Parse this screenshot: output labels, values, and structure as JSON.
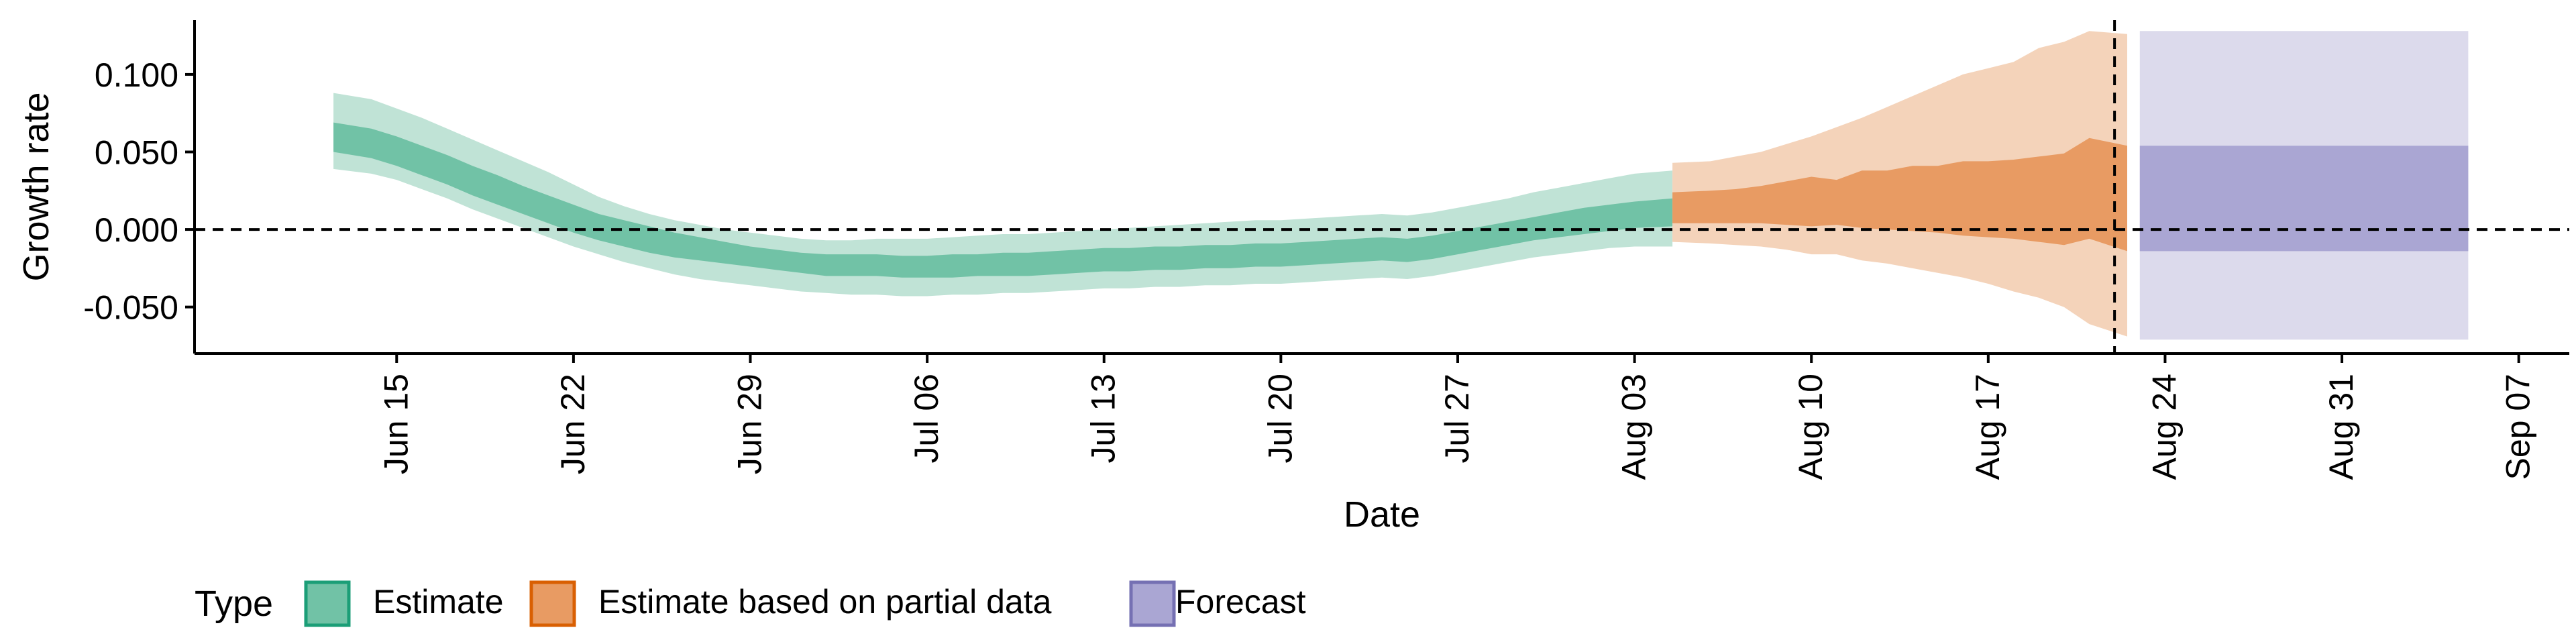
{
  "chart_data": {
    "type": "area",
    "title": "",
    "xlabel": "Date",
    "ylabel": "Growth rate",
    "x_axis": {
      "type": "date",
      "range": [
        "2020-06-07",
        "2020-09-09"
      ],
      "ticks": [
        "2020-06-15",
        "2020-06-22",
        "2020-06-29",
        "2020-07-06",
        "2020-07-13",
        "2020-07-20",
        "2020-07-27",
        "2020-08-03",
        "2020-08-10",
        "2020-08-17",
        "2020-08-24",
        "2020-08-31",
        "2020-09-07"
      ],
      "tick_labels": [
        "Jun 15",
        "Jun 22",
        "Jun 29",
        "Jul 06",
        "Jul 13",
        "Jul 20",
        "Jul 27",
        "Aug 03",
        "Aug 10",
        "Aug 17",
        "Aug 24",
        "Aug 31",
        "Sep 07"
      ]
    },
    "y_axis": {
      "range": [
        -0.08,
        0.135
      ],
      "ticks": [
        -0.05,
        0,
        0.05,
        0.1
      ],
      "tick_labels": [
        "-0.050",
        "0.000",
        "0.050",
        "0.100"
      ]
    },
    "reference_lines": {
      "horizontal_y": 0,
      "vertical_date": "2020-08-22"
    },
    "grid": false,
    "legend": {
      "title": "Type",
      "position": "bottom-left",
      "entries": [
        {
          "label": "Estimate",
          "fill": "#71c2a6",
          "border": "#1b9e77"
        },
        {
          "label": "Estimate based on partial data",
          "fill": "#e89b63",
          "border": "#d95f02"
        },
        {
          "label": "Forecast",
          "fill": "#aaa6d3",
          "border": "#7570b3"
        }
      ]
    },
    "series": [
      {
        "name": "Estimate",
        "color": "#1b9e77",
        "inner_color": "#71c2a6",
        "outer_color": "#c0e3d6",
        "x": [
          "2020-06-13",
          "2020-06-14",
          "2020-06-15",
          "2020-06-16",
          "2020-06-17",
          "2020-06-18",
          "2020-06-19",
          "2020-06-20",
          "2020-06-21",
          "2020-06-22",
          "2020-06-23",
          "2020-06-24",
          "2020-06-25",
          "2020-06-26",
          "2020-06-27",
          "2020-06-28",
          "2020-06-29",
          "2020-06-30",
          "2020-07-01",
          "2020-07-02",
          "2020-07-03",
          "2020-07-04",
          "2020-07-05",
          "2020-07-06",
          "2020-07-07",
          "2020-07-08",
          "2020-07-09",
          "2020-07-10",
          "2020-07-11",
          "2020-07-12",
          "2020-07-13",
          "2020-07-14",
          "2020-07-15",
          "2020-07-16",
          "2020-07-17",
          "2020-07-18",
          "2020-07-19",
          "2020-07-20",
          "2020-07-21",
          "2020-07-22",
          "2020-07-23",
          "2020-07-24",
          "2020-07-25",
          "2020-07-26",
          "2020-07-27",
          "2020-07-28",
          "2020-07-29",
          "2020-07-30",
          "2020-07-31",
          "2020-08-01",
          "2020-08-02",
          "2020-08-03",
          "2020-08-04"
        ],
        "inner_low": [
          0.05,
          0.046,
          0.041,
          0.035,
          0.029,
          0.022,
          0.016,
          0.01,
          0.004,
          -0.002,
          -0.007,
          -0.011,
          -0.015,
          -0.018,
          -0.02,
          -0.022,
          -0.024,
          -0.026,
          -0.028,
          -0.03,
          -0.03,
          -0.03,
          -0.031,
          -0.031,
          -0.031,
          -0.03,
          -0.03,
          -0.03,
          -0.029,
          -0.028,
          -0.027,
          -0.027,
          -0.026,
          -0.026,
          -0.025,
          -0.025,
          -0.024,
          -0.024,
          -0.023,
          -0.022,
          -0.021,
          -0.02,
          -0.021,
          -0.019,
          -0.016,
          -0.013,
          -0.01,
          -0.007,
          -0.005,
          -0.003,
          -0.001,
          0.001,
          0.002
        ],
        "inner_high": [
          0.069,
          0.065,
          0.06,
          0.054,
          0.048,
          0.041,
          0.035,
          0.028,
          0.022,
          0.016,
          0.01,
          0.006,
          0.002,
          -0.002,
          -0.005,
          -0.008,
          -0.011,
          -0.013,
          -0.015,
          -0.016,
          -0.016,
          -0.016,
          -0.017,
          -0.017,
          -0.016,
          -0.016,
          -0.015,
          -0.015,
          -0.014,
          -0.013,
          -0.012,
          -0.012,
          -0.011,
          -0.011,
          -0.01,
          -0.01,
          -0.009,
          -0.009,
          -0.008,
          -0.007,
          -0.006,
          -0.005,
          -0.006,
          -0.004,
          -0.001,
          0.002,
          0.005,
          0.008,
          0.011,
          0.014,
          0.016,
          0.018,
          0.02
        ],
        "outer_low": [
          0.039,
          0.036,
          0.032,
          0.026,
          0.02,
          0.013,
          0.007,
          0.001,
          -0.005,
          -0.011,
          -0.016,
          -0.021,
          -0.025,
          -0.029,
          -0.032,
          -0.034,
          -0.036,
          -0.038,
          -0.04,
          -0.041,
          -0.042,
          -0.042,
          -0.043,
          -0.043,
          -0.042,
          -0.042,
          -0.041,
          -0.041,
          -0.04,
          -0.039,
          -0.038,
          -0.038,
          -0.037,
          -0.037,
          -0.036,
          -0.036,
          -0.035,
          -0.035,
          -0.034,
          -0.033,
          -0.032,
          -0.031,
          -0.032,
          -0.03,
          -0.027,
          -0.024,
          -0.021,
          -0.018,
          -0.016,
          -0.014,
          -0.012,
          -0.011,
          -0.011
        ],
        "outer_high": [
          0.088,
          0.084,
          0.078,
          0.072,
          0.065,
          0.058,
          0.051,
          0.044,
          0.037,
          0.029,
          0.021,
          0.015,
          0.01,
          0.006,
          0.003,
          0.0,
          -0.002,
          -0.004,
          -0.006,
          -0.007,
          -0.007,
          -0.006,
          -0.006,
          -0.006,
          -0.005,
          -0.004,
          -0.003,
          -0.003,
          -0.002,
          -0.001,
          0.0,
          0.001,
          0.002,
          0.003,
          0.004,
          0.005,
          0.006,
          0.006,
          0.007,
          0.008,
          0.009,
          0.01,
          0.009,
          0.011,
          0.014,
          0.017,
          0.02,
          0.024,
          0.027,
          0.03,
          0.033,
          0.036,
          0.038
        ]
      },
      {
        "name": "Estimate based on partial data",
        "color": "#d95f02",
        "inner_color": "#e89b63",
        "outer_color": "#f4d3ba",
        "x": [
          "2020-08-05",
          "2020-08-06",
          "2020-08-07",
          "2020-08-08",
          "2020-08-09",
          "2020-08-10",
          "2020-08-11",
          "2020-08-12",
          "2020-08-13",
          "2020-08-14",
          "2020-08-15",
          "2020-08-16",
          "2020-08-17",
          "2020-08-18",
          "2020-08-19",
          "2020-08-20",
          "2020-08-21",
          "2020-08-22"
        ],
        "inner_low": [
          0.004,
          0.004,
          0.004,
          0.004,
          0.003,
          0.002,
          0.003,
          0.001,
          0.0,
          -0.001,
          -0.002,
          -0.004,
          -0.005,
          -0.006,
          -0.008,
          -0.01,
          -0.006,
          -0.014
        ],
        "inner_high": [
          0.024,
          0.025,
          0.026,
          0.028,
          0.031,
          0.034,
          0.032,
          0.038,
          0.038,
          0.041,
          0.041,
          0.044,
          0.044,
          0.045,
          0.047,
          0.049,
          0.059,
          0.054
        ],
        "outer_low": [
          -0.008,
          -0.009,
          -0.01,
          -0.011,
          -0.013,
          -0.016,
          -0.016,
          -0.02,
          -0.022,
          -0.025,
          -0.028,
          -0.031,
          -0.035,
          -0.04,
          -0.044,
          -0.05,
          -0.061,
          -0.069
        ],
        "outer_high": [
          0.043,
          0.044,
          0.047,
          0.05,
          0.055,
          0.06,
          0.066,
          0.072,
          0.079,
          0.086,
          0.093,
          0.1,
          0.104,
          0.108,
          0.117,
          0.121,
          0.128,
          0.126
        ]
      },
      {
        "name": "Forecast",
        "color": "#7570b3",
        "inner_color": "#aaa6d3",
        "outer_color": "#dcdaec",
        "x": [
          "2020-08-23",
          "2020-09-05"
        ],
        "inner_low": [
          -0.014,
          -0.014
        ],
        "inner_high": [
          0.054,
          0.054
        ],
        "outer_low": [
          -0.071,
          -0.071
        ],
        "outer_high": [
          0.128,
          0.128
        ]
      }
    ]
  }
}
